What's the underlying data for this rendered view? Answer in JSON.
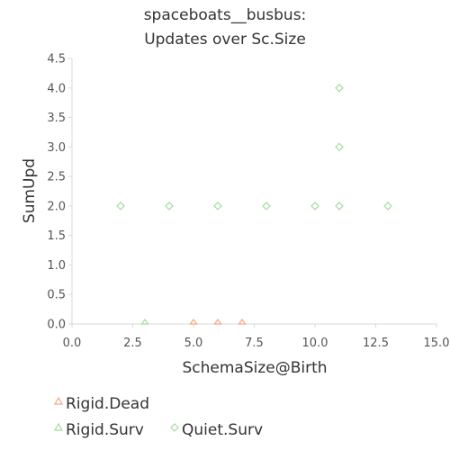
{
  "chart_data": {
    "type": "scatter",
    "title_lines": [
      "spaceboats__busbus:",
      "Updates over Sc.Size"
    ],
    "xlabel": "SchemaSize@Birth",
    "ylabel": "SumUpd",
    "xlim": [
      0,
      15
    ],
    "ylim": [
      0,
      4.5
    ],
    "x_ticks": [
      0,
      2.5,
      5,
      7.5,
      10,
      12.5,
      15
    ],
    "x_tick_labels": [
      "0.0",
      "2.5",
      "5.0",
      "7.5",
      "10.0",
      "12.5",
      "15.0"
    ],
    "y_ticks": [
      0,
      0.5,
      1,
      1.5,
      2,
      2.5,
      3,
      3.5,
      4,
      4.5
    ],
    "y_tick_labels": [
      "0.0",
      "0.5",
      "1.0",
      "1.5",
      "2.0",
      "2.5",
      "3.0",
      "3.5",
      "4.0",
      "4.5"
    ],
    "grid": false,
    "legend_position": "bottom",
    "series": [
      {
        "name": "Rigid.Dead",
        "marker": "triangle",
        "color": "#f4a582",
        "points": [
          [
            5,
            0
          ],
          [
            6,
            0
          ],
          [
            7,
            0
          ]
        ]
      },
      {
        "name": "Rigid.Surv",
        "marker": "triangle",
        "color": "#a6dba0",
        "points": [
          [
            3,
            0
          ]
        ]
      },
      {
        "name": "Quiet.Surv",
        "marker": "diamond",
        "color": "#a6dba0",
        "points": [
          [
            2,
            2
          ],
          [
            4,
            2
          ],
          [
            6,
            2
          ],
          [
            8,
            2
          ],
          [
            10,
            2
          ],
          [
            11,
            2
          ],
          [
            13,
            2
          ],
          [
            11,
            3
          ],
          [
            11,
            4
          ]
        ]
      }
    ]
  }
}
